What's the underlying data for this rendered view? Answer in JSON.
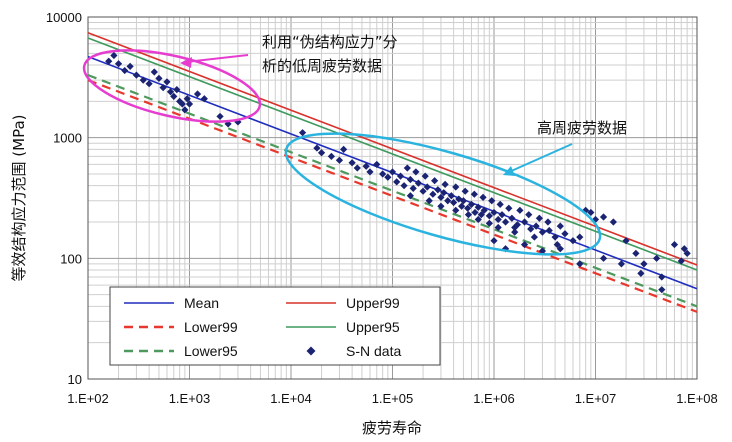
{
  "chart_data": {
    "type": "scatter",
    "scale": {
      "x": "log",
      "y": "log"
    },
    "xlim": [
      100,
      100000000
    ],
    "ylim": [
      10,
      10000
    ],
    "grid": true,
    "legend_placement": "bottom-left",
    "xlabel": "疲劳寿命",
    "ylabel": "等效结构应力范围 (MPa)",
    "x_ticks": [
      "1.E+02",
      "1.E+03",
      "1.E+04",
      "1.E+05",
      "1.E+06",
      "1.E+07",
      "1.E+08"
    ],
    "y_ticks": [
      "10",
      "100",
      "1000",
      "10000"
    ],
    "x_tick_values": [
      100,
      1000,
      10000,
      100000,
      1000000,
      10000000,
      100000000
    ],
    "y_tick_values": [
      10,
      100,
      1000,
      10000
    ],
    "colors": {
      "mean": "#1f2dbd",
      "upper99": "#d9312b",
      "lower99": "#e8372c",
      "upper95": "#3f9a5e",
      "lower95": "#4e9a5e",
      "points": "#1b2373",
      "callout_low": "#e63dd0",
      "callout_high": "#2bb3e0"
    },
    "series": [
      {
        "name": "Mean",
        "kind": "line",
        "style": "solid",
        "color_key": "mean",
        "x": [
          100,
          100000000
        ],
        "y": [
          4700,
          56
        ]
      },
      {
        "name": "Upper99",
        "kind": "line",
        "style": "solid",
        "color_key": "upper99",
        "x": [
          100,
          100000000
        ],
        "y": [
          7400,
          88
        ]
      },
      {
        "name": "Lower99",
        "kind": "line",
        "style": "dashed",
        "color_key": "lower99",
        "x": [
          100,
          100000000
        ],
        "y": [
          3000,
          36
        ]
      },
      {
        "name": "Upper95",
        "kind": "line",
        "style": "solid",
        "color_key": "upper95",
        "x": [
          100,
          100000000
        ],
        "y": [
          6700,
          80
        ]
      },
      {
        "name": "Lower95",
        "kind": "line",
        "style": "dashed",
        "color_key": "lower95",
        "x": [
          100,
          100000000
        ],
        "y": [
          3300,
          40
        ]
      },
      {
        "name": "S-N data",
        "kind": "scatter",
        "marker": "diamond",
        "color_key": "points",
        "points": [
          [
            160,
            4300
          ],
          [
            180,
            4800
          ],
          [
            200,
            4100
          ],
          [
            230,
            3600
          ],
          [
            260,
            3900
          ],
          [
            300,
            3300
          ],
          [
            350,
            3000
          ],
          [
            400,
            2800
          ],
          [
            450,
            3500
          ],
          [
            500,
            3100
          ],
          [
            550,
            2600
          ],
          [
            600,
            2900
          ],
          [
            650,
            2400
          ],
          [
            700,
            2200
          ],
          [
            750,
            2500
          ],
          [
            800,
            2000
          ],
          [
            850,
            1900
          ],
          [
            900,
            1700
          ],
          [
            950,
            2100
          ],
          [
            1000,
            1900
          ],
          [
            1200,
            2300
          ],
          [
            1400,
            2100
          ],
          [
            2000,
            1500
          ],
          [
            2400,
            1300
          ],
          [
            3000,
            1350
          ],
          [
            13000,
            1100
          ],
          [
            18000,
            820
          ],
          [
            20000,
            750
          ],
          [
            25000,
            700
          ],
          [
            30000,
            650
          ],
          [
            33000,
            800
          ],
          [
            40000,
            620
          ],
          [
            45000,
            560
          ],
          [
            55000,
            580
          ],
          [
            60000,
            520
          ],
          [
            70000,
            600
          ],
          [
            80000,
            500
          ],
          [
            90000,
            470
          ],
          [
            100000,
            520
          ],
          [
            110000,
            430
          ],
          [
            120000,
            480
          ],
          [
            130000,
            400
          ],
          [
            150000,
            450
          ],
          [
            160000,
            380
          ],
          [
            180000,
            420
          ],
          [
            200000,
            360
          ],
          [
            220000,
            390
          ],
          [
            250000,
            340
          ],
          [
            280000,
            370
          ],
          [
            300000,
            320
          ],
          [
            320000,
            350
          ],
          [
            350000,
            300
          ],
          [
            380000,
            330
          ],
          [
            400000,
            290
          ],
          [
            450000,
            310
          ],
          [
            480000,
            270
          ],
          [
            500000,
            300
          ],
          [
            550000,
            260
          ],
          [
            600000,
            280
          ],
          [
            650000,
            240
          ],
          [
            700000,
            265
          ],
          [
            750000,
            230
          ],
          [
            800000,
            250
          ],
          [
            900000,
            225
          ],
          [
            1000000,
            240
          ],
          [
            1100000,
            210
          ],
          [
            1200000,
            230
          ],
          [
            1300000,
            200
          ],
          [
            1500000,
            215
          ],
          [
            1700000,
            190
          ],
          [
            2000000,
            200
          ],
          [
            2300000,
            175
          ],
          [
            2600000,
            185
          ],
          [
            3000000,
            165
          ],
          [
            3500000,
            170
          ],
          [
            4000000,
            150
          ],
          [
            5000000,
            160
          ],
          [
            6000000,
            140
          ],
          [
            7000000,
            150
          ],
          [
            140000,
            560
          ],
          [
            170000,
            520
          ],
          [
            210000,
            480
          ],
          [
            260000,
            440
          ],
          [
            330000,
            410
          ],
          [
            420000,
            390
          ],
          [
            520000,
            360
          ],
          [
            640000,
            340
          ],
          [
            780000,
            320
          ],
          [
            950000,
            300
          ],
          [
            1150000,
            280
          ],
          [
            1400000,
            260
          ],
          [
            1800000,
            250
          ],
          [
            2200000,
            230
          ],
          [
            2800000,
            215
          ],
          [
            3400000,
            200
          ],
          [
            4500000,
            185
          ],
          [
            150000,
            330
          ],
          [
            230000,
            300
          ],
          [
            300000,
            270
          ],
          [
            420000,
            250
          ],
          [
            560000,
            230
          ],
          [
            700000,
            210
          ],
          [
            900000,
            195
          ],
          [
            1100000,
            180
          ],
          [
            1600000,
            165
          ],
          [
            2500000,
            150
          ],
          [
            4200000,
            130
          ],
          [
            1000000,
            140
          ],
          [
            1300000,
            120
          ],
          [
            1600000,
            180
          ],
          [
            2000000,
            130
          ],
          [
            3000000,
            115
          ],
          [
            4500000,
            120
          ],
          [
            8000000,
            250
          ],
          [
            9000000,
            240
          ],
          [
            10000000,
            210
          ],
          [
            12000000,
            220
          ],
          [
            15000000,
            200
          ],
          [
            20000000,
            140
          ],
          [
            25000000,
            110
          ],
          [
            28000000,
            75
          ],
          [
            30000000,
            90
          ],
          [
            40000000,
            100
          ],
          [
            45000000,
            70
          ],
          [
            60000000,
            130
          ],
          [
            70000000,
            95
          ],
          [
            75000000,
            120
          ],
          [
            80000000,
            110
          ],
          [
            45000000,
            55
          ],
          [
            7000000,
            90
          ],
          [
            12000000,
            100
          ],
          [
            18000000,
            90
          ]
        ]
      }
    ],
    "annotations": [
      {
        "text_lines": [
          "利用“伪结构应力”分",
          "析的低周疲劳数据"
        ],
        "color_key": "callout_low"
      },
      {
        "text_lines": [
          "高周疲劳数据"
        ],
        "color_key": "callout_high"
      }
    ]
  }
}
